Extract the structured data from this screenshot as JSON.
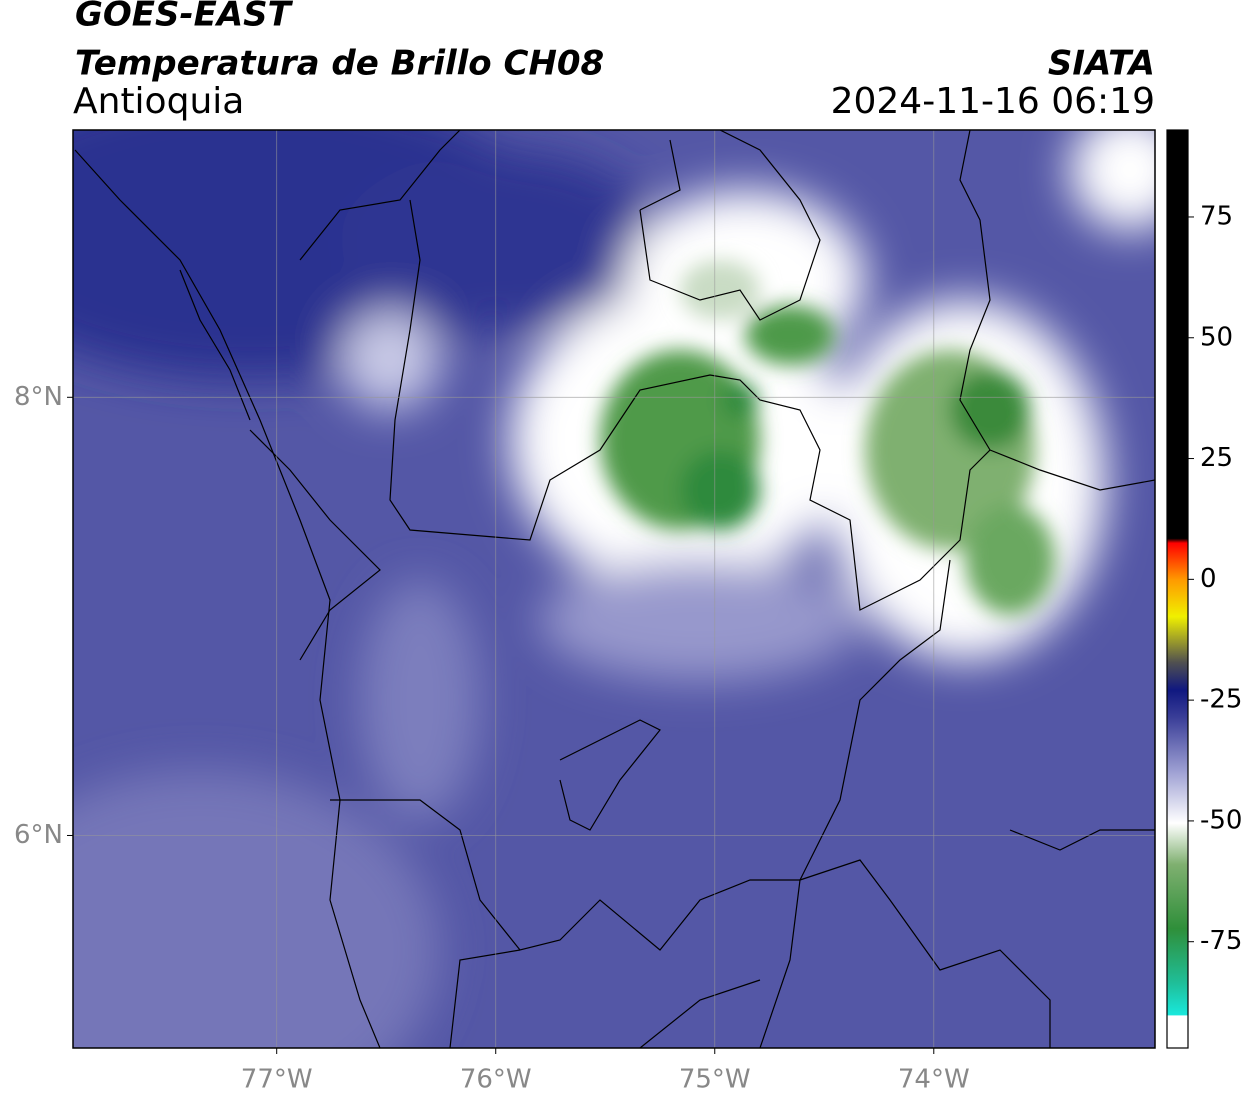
{
  "header": {
    "satellite": "GOES-EAST",
    "product": "Temperatura de Brillo CH08",
    "region": "Antioquia",
    "source": "SIATA",
    "datetime": "2024-11-16 06:19"
  },
  "map": {
    "lonlim": [
      -77.93,
      -72.99
    ],
    "latlim": [
      5.03,
      9.22
    ],
    "lonticks": [
      {
        "value": -77,
        "label": "77°W"
      },
      {
        "value": -76,
        "label": "76°W"
      },
      {
        "value": -75,
        "label": "75°W"
      },
      {
        "value": -74,
        "label": "74°W"
      }
    ],
    "latticks": [
      {
        "value": 8,
        "label": "8°N"
      },
      {
        "value": 6,
        "label": "6°N"
      }
    ],
    "grid": true
  },
  "colorbar": {
    "lim": [
      -97,
      93
    ],
    "ticks": [
      75,
      50,
      25,
      0,
      -25,
      -50,
      -75
    ]
  }
}
